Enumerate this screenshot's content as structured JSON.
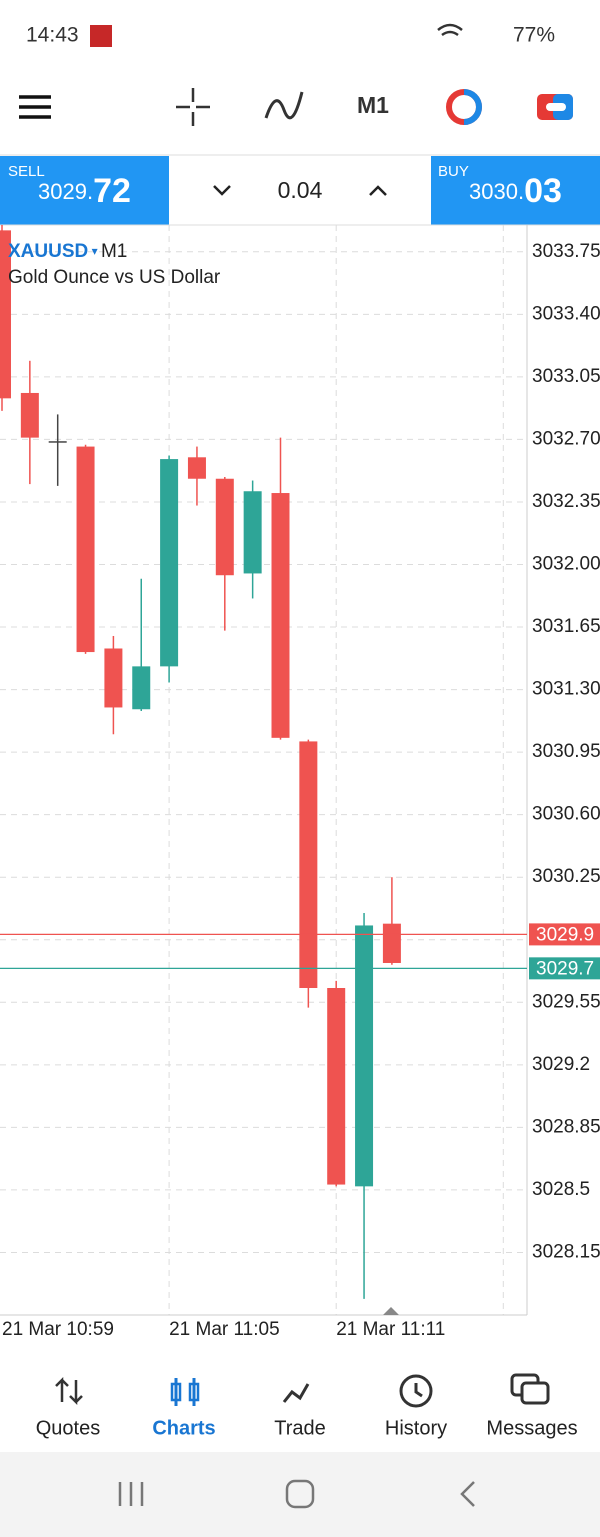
{
  "status_bar": {
    "time": "14:43",
    "battery": "77%"
  },
  "toolbar": {
    "timeframe": "M1"
  },
  "trade_bar": {
    "sell": {
      "label": "SELL",
      "price_main": "3029.",
      "price_big": "72"
    },
    "volume": "0.04",
    "buy": {
      "label": "BUY",
      "price_main": "3030.",
      "price_big": "03"
    }
  },
  "chart_data": {
    "type": "candlestick",
    "symbol": "XAUUSD",
    "timeframe": "M1",
    "subtitle": "Gold Ounce vs US Dollar",
    "categories": [
      "21 Mar 10:59",
      null,
      null,
      null,
      null,
      null,
      "21 Mar 11:05",
      null,
      null,
      null,
      null,
      null,
      "21 Mar 11:11",
      null,
      null
    ],
    "open": [
      3033.87,
      3032.96,
      3032.69,
      3032.66,
      3031.53,
      3031.19,
      3031.43,
      3032.6,
      3032.48,
      3031.95,
      3032.4,
      3031.01,
      3029.63,
      3028.52,
      3029.99
    ],
    "high": [
      3033.95,
      3033.14,
      3032.84,
      3032.67,
      3031.6,
      3031.92,
      3032.61,
      3032.66,
      3032.49,
      3032.47,
      3032.71,
      3031.02,
      3029.67,
      3030.05,
      3030.25
    ],
    "low": [
      3032.86,
      3032.45,
      3032.44,
      3031.5,
      3031.05,
      3031.18,
      3031.34,
      3032.33,
      3031.63,
      3031.81,
      3031.02,
      3029.52,
      3028.52,
      3027.89,
      3029.76
    ],
    "close": [
      3032.93,
      3032.71,
      3032.69,
      3031.51,
      3031.2,
      3031.43,
      3032.59,
      3032.48,
      3031.94,
      3032.41,
      3031.03,
      3029.63,
      3028.53,
      3029.98,
      3029.77
    ],
    "up_color": "#2ea597",
    "down_color": "#ef5350",
    "doji_color": "#444444",
    "ylim": [
      3027.8,
      3033.9
    ],
    "yticks": [
      3033.75,
      {
        "value": 3033.4,
        "label": "3033.40"
      },
      3033.05,
      {
        "value": 3032.7,
        "label": "3032.70"
      },
      3032.35,
      {
        "value": 3032,
        "label": "3032.00"
      },
      3031.65,
      {
        "value": 3031.3,
        "label": "3031.30"
      },
      3030.95,
      {
        "value": 3030.6,
        "label": "3030.60"
      },
      3030.25,
      {
        "value": 3029.9,
        "label": "3029.90"
      },
      3029.55,
      3029.2,
      3028.85,
      3028.5,
      3028.15
    ],
    "grid": true,
    "price_lines": [
      {
        "value": 3029.93,
        "label": "3029.9",
        "color": "#ef5350"
      },
      {
        "value": 3029.74,
        "label": "3029.7",
        "color": "#2ea597"
      }
    ]
  },
  "bottom_nav": {
    "items": [
      "Quotes",
      "Charts",
      "Trade",
      "History",
      "Messages"
    ],
    "active": 1
  }
}
